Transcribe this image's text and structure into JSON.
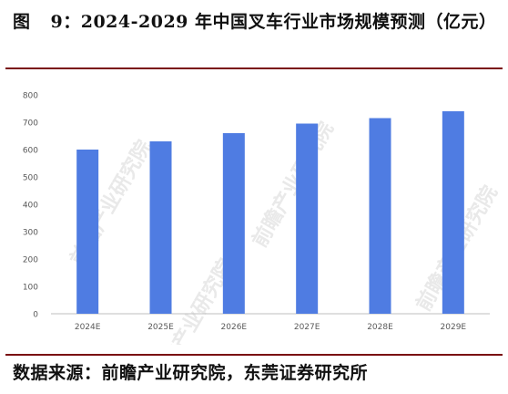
{
  "caption": {
    "label": "图",
    "text": "9：2024-2029 年中国叉车行业市场规模预测（亿元）"
  },
  "source": {
    "text": "数据来源：前瞻产业研究院，东莞证券研究所"
  },
  "watermark_text": "前瞻产业研究院",
  "colors": {
    "bar": "#4f7ce2",
    "axis_text": "#595959",
    "rule": "#7a0f12",
    "baseline": "#bfbfbf"
  },
  "chart_data": {
    "type": "bar",
    "categories": [
      "2024E",
      "2025E",
      "2026E",
      "2027E",
      "2028E",
      "2029E"
    ],
    "values": [
      600,
      630,
      660,
      695,
      715,
      740
    ],
    "yticks": [
      0,
      100,
      200,
      300,
      400,
      500,
      600,
      700,
      800
    ],
    "ylim": [
      0,
      800
    ],
    "title": "",
    "xlabel": "",
    "ylabel": "",
    "grid": false,
    "legend": "none"
  }
}
